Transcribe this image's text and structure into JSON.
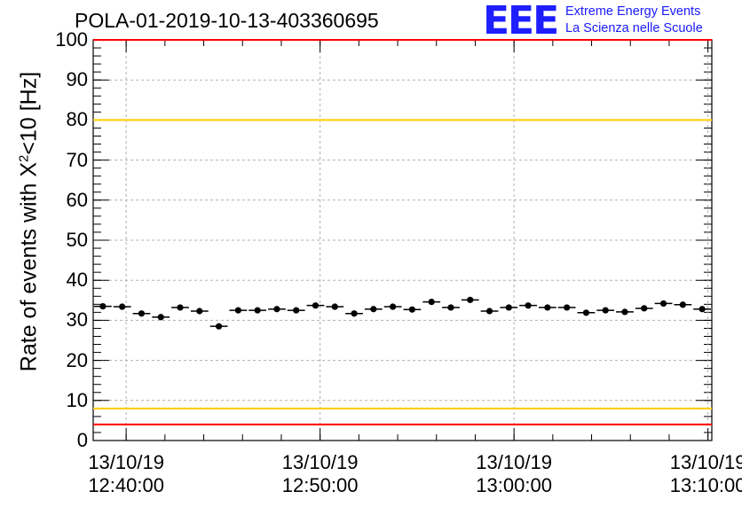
{
  "chart_data": {
    "type": "scatter",
    "title": "POLA-01-2019-10-13-403360695",
    "ylabel_prefix": "Rate of events with X",
    "ylabel_sup": "2",
    "ylabel_suffix": "<10 [Hz]",
    "ylim": [
      0,
      100
    ],
    "yticks": [
      "0",
      "10",
      "20",
      "30",
      "40",
      "50",
      "60",
      "70",
      "80",
      "90",
      "100"
    ],
    "xticks": [
      {
        "date": "13/10/19",
        "time": "12:40:00"
      },
      {
        "date": "13/10/19",
        "time": "12:50:00"
      },
      {
        "date": "13/10/19",
        "time": "13:00:00"
      },
      {
        "date": "13/10/19",
        "time": "13:10:00"
      }
    ],
    "xlim_minutes_from_first_tick": [
      -1.7,
      30.2
    ],
    "grid": true,
    "reference_lines": [
      {
        "value": 100,
        "color": "#ff0000"
      },
      {
        "value": 80,
        "color": "#ffcc00"
      },
      {
        "value": 8,
        "color": "#ffcc00"
      },
      {
        "value": 4,
        "color": "#ff0000"
      }
    ],
    "series": [
      {
        "values": [
          33.5,
          33.4,
          31.7,
          30.8,
          33.2,
          32.3,
          28.5,
          32.5,
          32.5,
          32.8,
          32.5,
          33.7,
          33.4,
          31.7,
          32.8,
          33.4,
          32.7,
          34.6,
          33.2,
          35.1,
          32.3,
          33.2,
          33.7,
          33.2,
          33.2,
          31.9,
          32.5,
          32.1,
          33.0,
          34.2,
          33.9,
          32.8
        ]
      }
    ]
  },
  "logo": {
    "mark": "EEE",
    "line1": "Extreme Energy Events",
    "line2": "La Scienza nelle Scuole"
  }
}
